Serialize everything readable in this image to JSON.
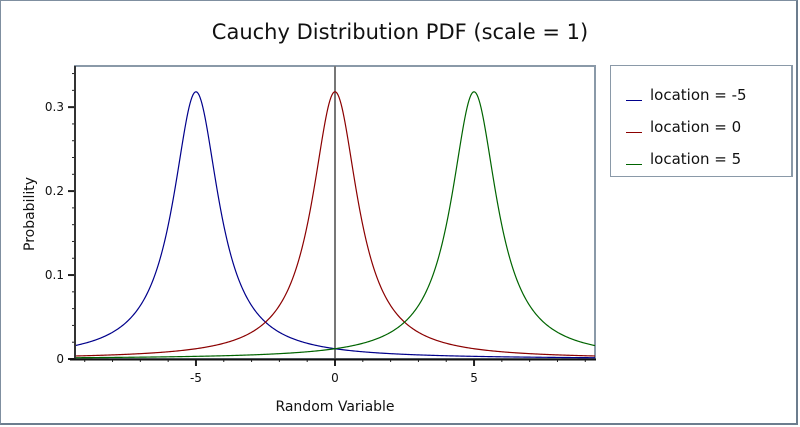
{
  "chart_data": {
    "type": "line",
    "title": "Cauchy Distribution PDF (scale = 1)",
    "xlabel": "Random Variable",
    "ylabel": "Probability",
    "xlim": [
      -9.35,
      9.35
    ],
    "ylim": [
      0,
      0.349
    ],
    "x_ticks": [
      -5,
      0,
      5
    ],
    "y_ticks": [
      0,
      0.1,
      0.2,
      0.3
    ],
    "x_tick_labels": [
      "-5",
      "0",
      "5"
    ],
    "y_tick_labels": [
      "0",
      "0.1",
      "0.2",
      "0.3"
    ],
    "grid": false,
    "legend_position": "right",
    "series": [
      {
        "name": "location = -5",
        "location": -5,
        "scale": 1,
        "color": "#00008b",
        "peak": [
          -5,
          0.3183
        ]
      },
      {
        "name": "location = 0",
        "location": 0,
        "scale": 1,
        "color": "#8b0000",
        "peak": [
          0,
          0.3183
        ]
      },
      {
        "name": "location = 5",
        "location": 5,
        "scale": 1,
        "color": "#006400",
        "peak": [
          5,
          0.3183
        ]
      }
    ],
    "sample_points": {
      "x": [
        -9,
        -7,
        -5,
        -4,
        -3,
        -2,
        -1,
        0,
        1,
        2,
        3,
        4,
        5,
        7,
        9
      ],
      "location_-5": [
        0.0187,
        0.0637,
        0.3183,
        0.1592,
        0.0637,
        0.0318,
        0.0187,
        0.0122,
        0.0086,
        0.0064,
        0.0049,
        0.0039,
        0.0032,
        0.0022,
        0.0016
      ],
      "location_0": [
        0.0039,
        0.0064,
        0.0122,
        0.0187,
        0.0318,
        0.0637,
        0.1592,
        0.3183,
        0.1592,
        0.0637,
        0.0318,
        0.0187,
        0.0122,
        0.0064,
        0.0039
      ],
      "location_5": [
        0.0016,
        0.0022,
        0.0032,
        0.0039,
        0.0049,
        0.0064,
        0.0086,
        0.0122,
        0.0187,
        0.0318,
        0.0637,
        0.1592,
        0.3183,
        0.0637,
        0.0187
      ]
    }
  },
  "legend": {
    "items": [
      {
        "label": "location = -5",
        "color": "#00008b"
      },
      {
        "label": "location = 0",
        "color": "#8b0000"
      },
      {
        "label": "location = 5",
        "color": "#006400"
      }
    ]
  }
}
